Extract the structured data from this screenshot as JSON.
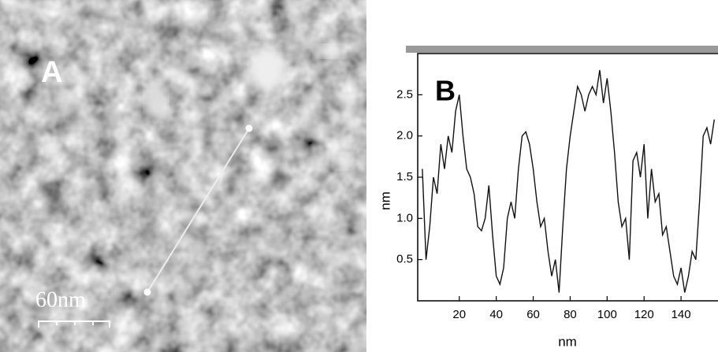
{
  "chart_data": {
    "type": "line",
    "annotations": [
      "A",
      "60nm",
      "B"
    ],
    "xlabel": "nm",
    "ylabel": "nm",
    "x": [
      0,
      2,
      4,
      6,
      8,
      10,
      12,
      14,
      16,
      18,
      20,
      22,
      24,
      26,
      28,
      30,
      32,
      34,
      36,
      38,
      40,
      42,
      44,
      46,
      48,
      50,
      52,
      54,
      56,
      58,
      60,
      62,
      64,
      66,
      68,
      70,
      72,
      74,
      76,
      78,
      80,
      82,
      84,
      86,
      88,
      90,
      92,
      94,
      96,
      98,
      100,
      102,
      104,
      106,
      108,
      110,
      112,
      114,
      116,
      118,
      120,
      122,
      124,
      126,
      128,
      130,
      132,
      134,
      136,
      138,
      140,
      142,
      144,
      146,
      148,
      150,
      152,
      154,
      156,
      158
    ],
    "values": [
      1.6,
      0.5,
      0.9,
      1.5,
      1.3,
      1.9,
      1.6,
      2.0,
      1.8,
      2.3,
      2.5,
      2.0,
      1.6,
      1.5,
      1.3,
      0.9,
      0.85,
      1.0,
      1.4,
      0.8,
      0.3,
      0.2,
      0.4,
      1.0,
      1.2,
      1.0,
      1.6,
      2.0,
      2.05,
      1.9,
      1.6,
      1.2,
      0.9,
      1.0,
      0.6,
      0.3,
      0.5,
      0.1,
      0.9,
      1.6,
      2.0,
      2.3,
      2.6,
      2.5,
      2.3,
      2.5,
      2.6,
      2.5,
      2.8,
      2.4,
      2.7,
      2.3,
      1.8,
      1.2,
      0.9,
      1.0,
      0.5,
      1.7,
      1.8,
      1.5,
      1.9,
      1.0,
      1.6,
      1.2,
      1.3,
      0.8,
      0.9,
      0.6,
      0.3,
      0.2,
      0.4,
      0.1,
      0.3,
      0.6,
      0.5,
      1.2,
      2.0,
      2.1,
      1.9,
      2.2
    ],
    "color": "#111111",
    "xlim": [
      -2.5,
      160
    ],
    "ylim": [
      0,
      3
    ],
    "xticks": [
      20,
      40,
      60,
      80,
      100,
      120,
      140
    ],
    "yticks": [
      0.5,
      {
        "value": 1,
        "label": "1.0"
      },
      1.5,
      {
        "value": 2,
        "label": "2.0"
      },
      2.5
    ]
  }
}
